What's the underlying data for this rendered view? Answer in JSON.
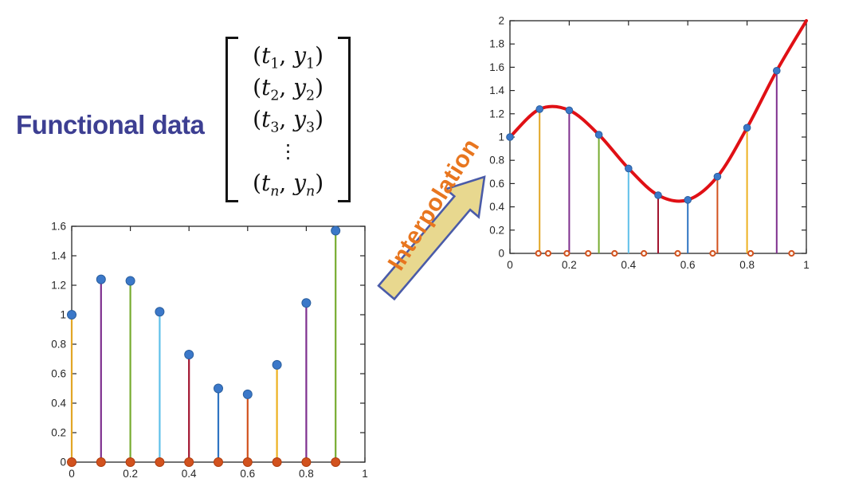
{
  "title": {
    "text": "Functional data",
    "color": "#3D3F92"
  },
  "matrix": {
    "rows": [
      {
        "v1": "t",
        "s1": "1",
        "v2": "y",
        "s2": "1"
      },
      {
        "v1": "t",
        "s1": "2",
        "v2": "y",
        "s2": "2"
      },
      {
        "v1": "t",
        "s1": "3",
        "v2": "y",
        "s2": "3"
      },
      {
        "dots": "⋮"
      },
      {
        "v1": "t",
        "s1": "n",
        "v2": "y",
        "s2": "n"
      }
    ]
  },
  "arrow": {
    "label": "Interpolation",
    "label_color": "#E8761F",
    "fill": "#E8D88F",
    "outline": "#4A5BA8"
  },
  "chart_data": [
    {
      "name": "observed-stem-plot",
      "type": "stem",
      "x": [
        0,
        0.1,
        0.2,
        0.3,
        0.4,
        0.5,
        0.6,
        0.7,
        0.8,
        0.9
      ],
      "y": [
        1.0,
        1.24,
        1.23,
        1.02,
        0.73,
        0.5,
        0.46,
        0.66,
        1.08,
        1.57
      ],
      "stem_colors": [
        "#E2A626",
        "#7E2F8E",
        "#77AC30",
        "#5FC0EA",
        "#A2142F",
        "#2E74C2",
        "#D2521E",
        "#EDB120",
        "#7E2F8E",
        "#77AC30"
      ],
      "marker_fill": "#3B78C9",
      "marker_stroke": "#2B5F9E",
      "base_marker_fill": "#D2521E",
      "base_marker_stroke": "#B03E10",
      "axis_color": "#262626",
      "xlim": [
        0,
        1
      ],
      "ylim": [
        0,
        1.6
      ],
      "xticks": [
        0,
        0.2,
        0.4,
        0.6,
        0.8,
        1
      ],
      "xtick_labels": [
        "0",
        "0.2",
        "0.4",
        "0.6",
        "0.8",
        "1"
      ],
      "yticks": [
        0,
        0.2,
        0.4,
        0.6,
        0.8,
        1,
        1.2,
        1.4,
        1.6
      ],
      "ytick_labels": [
        "0",
        "0.2",
        "0.4",
        "0.6",
        "0.8",
        "1",
        "1.2",
        "1.4",
        "1.6"
      ],
      "grid": false,
      "box": true,
      "legend": "none"
    },
    {
      "name": "interpolated-plot",
      "type": "stem+line",
      "x": [
        0,
        0.1,
        0.2,
        0.3,
        0.4,
        0.5,
        0.6,
        0.7,
        0.8,
        0.9
      ],
      "y": [
        1.0,
        1.24,
        1.23,
        1.02,
        0.73,
        0.5,
        0.46,
        0.66,
        1.08,
        1.57
      ],
      "stem_colors": [
        null,
        "#E2A626",
        "#7E2F8E",
        "#77AC30",
        "#5FC0EA",
        "#A2142F",
        "#2E74C2",
        "#D2521E",
        "#EDB120",
        "#7E2F8E"
      ],
      "marker_fill": "#3B78C9",
      "marker_stroke": "#2B5F9E",
      "node_marks_x": [
        0.096,
        0.129,
        0.192,
        0.264,
        0.353,
        0.452,
        0.566,
        0.684,
        0.812,
        0.95
      ],
      "node_mark_color": "#D2521E",
      "curve": {
        "color": "#E01015",
        "x": [
          0,
          0.1,
          0.2,
          0.3,
          0.4,
          0.5,
          0.6,
          0.7,
          0.8,
          0.9,
          1.0
        ],
        "y": [
          1.0,
          1.24,
          1.23,
          1.02,
          0.73,
          0.5,
          0.46,
          0.66,
          1.08,
          1.57,
          2.0
        ]
      },
      "axis_color": "#262626",
      "xlim": [
        0,
        1
      ],
      "ylim": [
        0,
        2
      ],
      "xticks": [
        0,
        0.2,
        0.4,
        0.6,
        0.8,
        1
      ],
      "xtick_labels": [
        "0",
        "0.2",
        "0.4",
        "0.6",
        "0.8",
        "1"
      ],
      "yticks": [
        0,
        0.2,
        0.4,
        0.6,
        0.8,
        1,
        1.2,
        1.4,
        1.6,
        1.8,
        2
      ],
      "ytick_labels": [
        "0",
        "0.2",
        "0.4",
        "0.6",
        "0.8",
        "1",
        "1.2",
        "1.4",
        "1.6",
        "1.8",
        "2"
      ],
      "grid": false,
      "box": true,
      "legend": "none"
    }
  ]
}
